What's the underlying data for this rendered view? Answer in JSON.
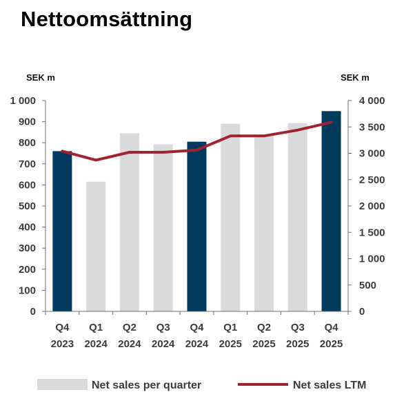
{
  "title": "Nettoomsättning",
  "colors": {
    "highlight_bar": "#003a5d",
    "bar": "#d9dadb",
    "line": "#a3222f",
    "axis": "#6f6f6f",
    "text": "#3b3b3b"
  },
  "chart_data": {
    "type": "bar",
    "title": "Nettoomsättning",
    "categories": [
      {
        "quarter": "Q4",
        "year": "2023"
      },
      {
        "quarter": "Q1",
        "year": "2024"
      },
      {
        "quarter": "Q2",
        "year": "2024"
      },
      {
        "quarter": "Q3",
        "year": "2024"
      },
      {
        "quarter": "Q4",
        "year": "2024"
      },
      {
        "quarter": "Q1",
        "year": "2025"
      },
      {
        "quarter": "Q2",
        "year": "2025"
      },
      {
        "quarter": "Q3",
        "year": "2025"
      },
      {
        "quarter": "Q4",
        "year": "2025"
      }
    ],
    "highlighted": [
      true,
      false,
      false,
      false,
      true,
      false,
      false,
      false,
      true
    ],
    "series": [
      {
        "name": "Net sales per quarter",
        "type": "bar",
        "axis": "left",
        "values": [
          760,
          615,
          845,
          792,
          805,
          890,
          832,
          893,
          950
        ]
      },
      {
        "name": "Net sales LTM",
        "type": "line",
        "axis": "right",
        "values": [
          3040,
          2870,
          3020,
          3020,
          3060,
          3330,
          3330,
          3440,
          3590
        ]
      }
    ],
    "left_axis": {
      "unit": "SEK m",
      "ylim": [
        0,
        1000
      ],
      "ticks": [
        0,
        100,
        200,
        300,
        400,
        500,
        600,
        700,
        800,
        900,
        1000
      ],
      "tick_labels": [
        "0",
        "100",
        "200",
        "300",
        "400",
        "500",
        "600",
        "700",
        "800",
        "900",
        "1 000"
      ]
    },
    "right_axis": {
      "unit": "SEK m",
      "ylim": [
        0,
        4000
      ],
      "ticks": [
        0,
        500,
        1000,
        1500,
        2000,
        2500,
        3000,
        3500,
        4000
      ],
      "tick_labels": [
        "0",
        "500",
        "1 000",
        "1 500",
        "2 000",
        "2 500",
        "3 000",
        "3 500",
        "4 000"
      ]
    },
    "grid": false,
    "legend_position": "bottom"
  }
}
